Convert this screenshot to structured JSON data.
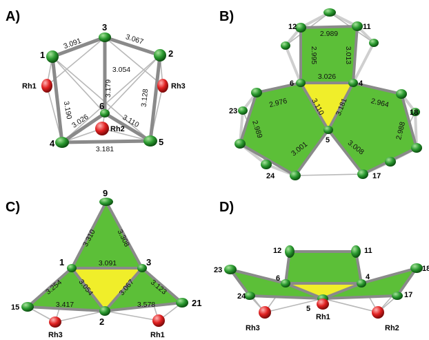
{
  "panels": {
    "A": {
      "label": "A)",
      "atoms": {
        "a1": "1",
        "a2": "2",
        "a3": "3",
        "a4": "4",
        "a5": "5",
        "a6": "6",
        "rh1": "Rh1",
        "rh2": "Rh2",
        "rh3": "Rh3"
      },
      "distances": {
        "d13": "3.091",
        "d32": "3.067",
        "d36": "3.054",
        "d16": "3.179",
        "d14": "3.190",
        "d25": "3.128",
        "d64": "3.026",
        "d65": "3.110",
        "d45": "3.181"
      }
    },
    "B": {
      "label": "B)",
      "atoms": {
        "a12": "12",
        "a11": "11",
        "a6": "6",
        "a4": "4",
        "a5": "5",
        "a23": "23",
        "a18": "18",
        "a24": "24",
        "a17": "17"
      },
      "distances": {
        "top": "2.989",
        "left": "2.995",
        "right": "3.013",
        "mid": "3.026",
        "l_top": "2.976",
        "l_mid": "3.110",
        "l_left": "2.989",
        "l_bot": "3.001",
        "r_top": "2.964",
        "r_mid": "3.181",
        "r_right": "2.988",
        "r_bot": "3.008"
      }
    },
    "C": {
      "label": "C)",
      "atoms": {
        "a9": "9",
        "a1": "1",
        "a3": "3",
        "a2": "2",
        "a15": "15",
        "a21": "21",
        "rh3": "Rh3",
        "rh1": "Rh1"
      },
      "distances": {
        "d91": "3.310",
        "d93": "3.308",
        "d13": "3.091",
        "d115": "3.254",
        "d12": "3.054",
        "d152": "3.417",
        "d32": "3.067",
        "d321": "3.123",
        "d221": "3.578"
      }
    },
    "D": {
      "label": "D)",
      "atoms": {
        "a12": "12",
        "a11": "11",
        "a6": "6",
        "a4": "4",
        "a23": "23",
        "a18": "18",
        "a24": "24",
        "a17": "17",
        "a5": "5",
        "rh1": "Rh1",
        "rh3": "Rh3",
        "rh2": "Rh2"
      }
    }
  },
  "colors": {
    "carbon": "#1f8a25",
    "rhodium": "#d32020",
    "face": "#5cbf38",
    "center_face": "#f0ee2a",
    "bond": "#8a8a8a"
  }
}
